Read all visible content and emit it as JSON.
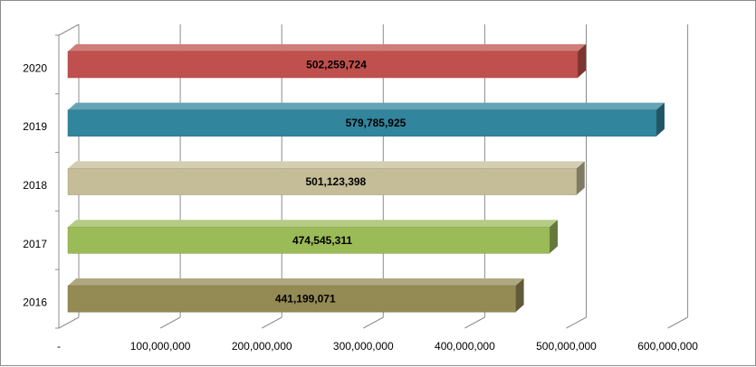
{
  "chart_data": {
    "type": "bar",
    "orientation": "horizontal",
    "style": "3d",
    "categories": [
      "2016",
      "2017",
      "2018",
      "2019",
      "2020"
    ],
    "values": [
      441199071,
      474545311,
      501123398,
      579785925,
      502259724
    ],
    "value_labels": [
      "441,199,071",
      "474,545,311",
      "501,123,398",
      "579,785,925",
      "502,259,724"
    ],
    "bar_colors": [
      "#948a54",
      "#9bbb59",
      "#c4bd97",
      "#31859c",
      "#c0504d"
    ],
    "xlim": [
      0,
      600000000
    ],
    "x_ticks": [
      0,
      100000000,
      200000000,
      300000000,
      400000000,
      500000000,
      600000000
    ],
    "x_tick_labels": [
      "-",
      "100,000,000",
      "200,000,000",
      "300,000,000",
      "400,000,000",
      "500,000,000",
      "600,000,000"
    ],
    "grid": true,
    "title": "",
    "xlabel": "",
    "ylabel": ""
  }
}
